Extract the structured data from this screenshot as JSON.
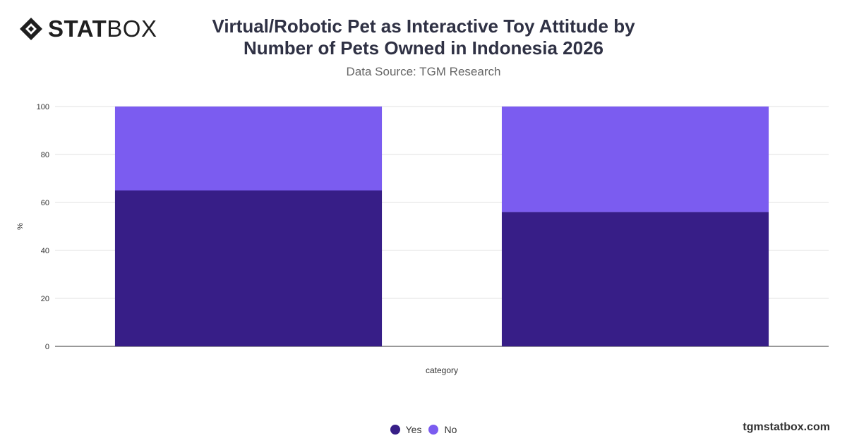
{
  "brand": {
    "logo_bold": "STAT",
    "logo_light": "BOX",
    "footer_url": "tgmstatbox.com"
  },
  "header": {
    "title_line1": "Virtual/Robotic Pet as Interactive Toy Attitude by",
    "title_line2": "Number of Pets Owned in Indonesia 2026",
    "subtitle": "Data Source: TGM Research"
  },
  "chart_data": {
    "type": "bar",
    "stacked": true,
    "title": "Virtual/Robotic Pet as Interactive Toy Attitude by Number of Pets Owned in Indonesia 2026",
    "subtitle": "Data Source: TGM Research",
    "xlabel": "category",
    "ylabel": "%",
    "ylim": [
      0,
      100
    ],
    "yticks": [
      0,
      20,
      40,
      60,
      80,
      100
    ],
    "categories": [
      "",
      ""
    ],
    "series": [
      {
        "name": "Yes",
        "color": "#371e87",
        "values": [
          65,
          56
        ]
      },
      {
        "name": "No",
        "color": "#7b5cf0",
        "values": [
          35,
          44
        ]
      }
    ],
    "grid": true,
    "legend_position": "bottom-center"
  }
}
